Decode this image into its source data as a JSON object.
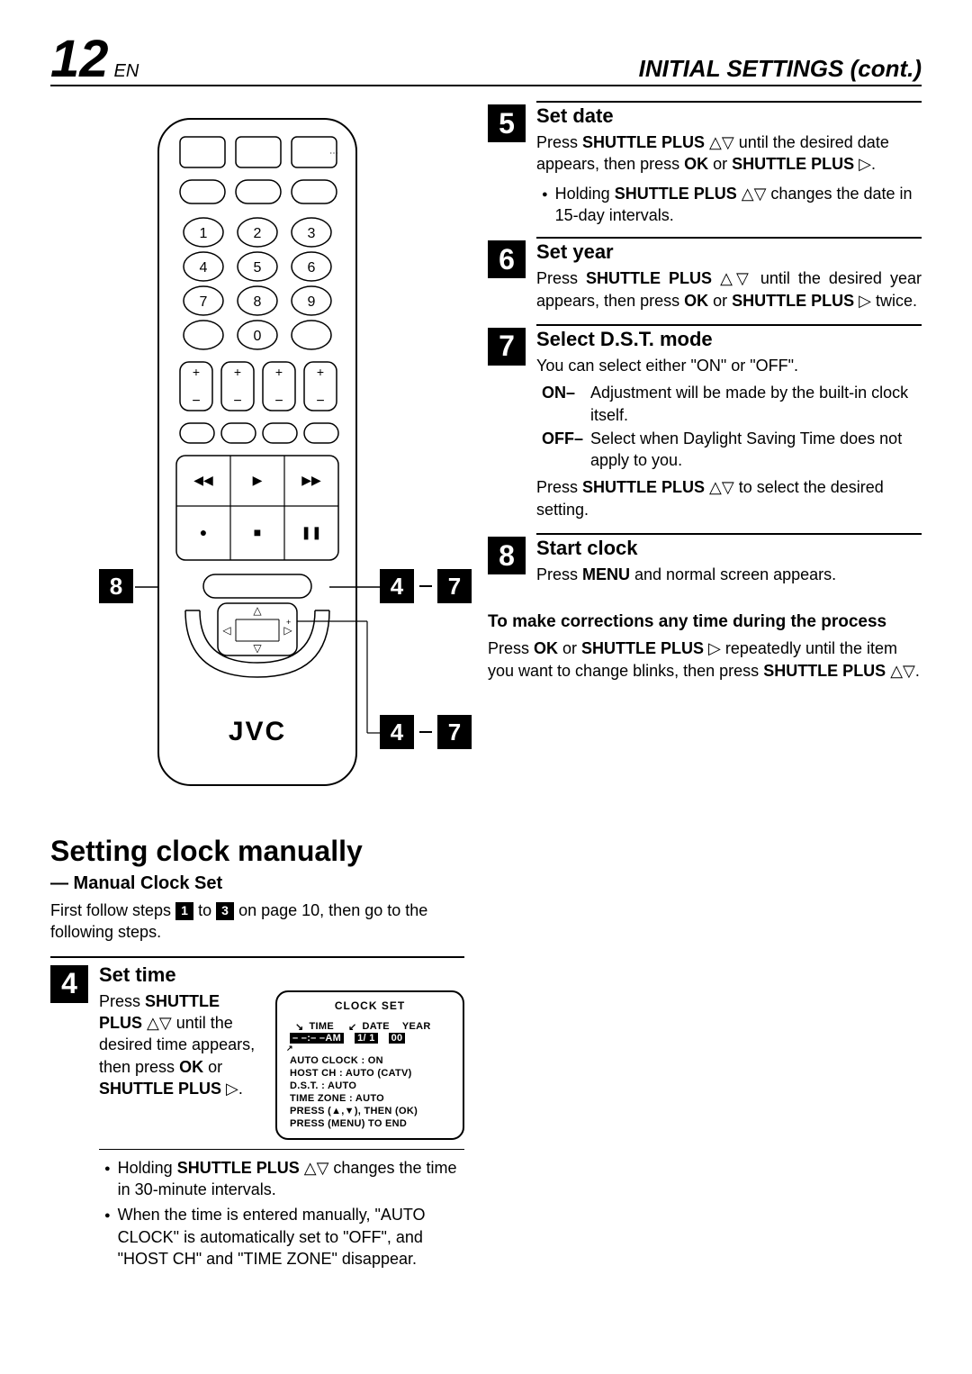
{
  "header": {
    "page_number": "12",
    "page_lang": "EN",
    "section": "INITIAL SETTINGS (cont.)"
  },
  "remote": {
    "brand": "JVC",
    "callouts": {
      "left_badge": "8",
      "right_top_a": "4",
      "right_top_b": "7",
      "right_bottom_a": "4",
      "right_bottom_b": "7"
    },
    "number_buttons": [
      "1",
      "2",
      "3",
      "4",
      "5",
      "6",
      "7",
      "8",
      "9",
      "0"
    ]
  },
  "steps_right": [
    {
      "num": "5",
      "title": "Set date",
      "body_html": "Press <b>SHUTTLE PLUS</b> △▽ until the desired date appears, then press <b>OK</b> or <b>SHUTTLE PLUS</b> ▷.",
      "bullets": [
        "Holding <b>SHUTTLE PLUS</b> △▽ changes the date in 15-day intervals."
      ]
    },
    {
      "num": "6",
      "title": "Set year",
      "body_html": "Press <b>SHUTTLE PLUS</b> △▽ until the desired year appears, then press <b>OK</b> or <b>SHUTTLE PLUS</b> ▷ twice."
    },
    {
      "num": "7",
      "title": "Select D.S.T. mode",
      "body_html": "You can select either \"ON\" or \"OFF\".",
      "defs": [
        {
          "key": "ON–",
          "text": "Adjustment will be made by the built-in clock itself."
        },
        {
          "key": "OFF–",
          "text": "Select when Daylight Saving Time does not apply to you."
        }
      ],
      "tail_html": "Press <b>SHUTTLE PLUS</b> △▽ to select the desired setting."
    },
    {
      "num": "8",
      "title": "Start clock",
      "body_html": "Press <b>MENU</b> and normal screen appears."
    }
  ],
  "corrections": {
    "heading": "To make corrections any time during the process",
    "body_html": "Press <b>OK</b> or <b>SHUTTLE PLUS</b> ▷ repeatedly until the item you want to change blinks, then press <b>SHUTTLE PLUS</b> △▽."
  },
  "bottom_section": {
    "heading": "Setting clock manually",
    "sub": "— Manual Clock Set",
    "intro_pre": "First follow steps ",
    "intro_step_a": "1",
    "intro_mid": " to ",
    "intro_step_b": "3",
    "intro_post": " on page 10, then go to the following steps.",
    "step4": {
      "num": "4",
      "title": "Set time",
      "body_html": "Press <b>SHUTTLE PLUS</b> △▽ until the desired time appears, then press <b>OK</b> or <b>SHUTTLE PLUS</b> ▷.",
      "bullets_after": [
        "Holding <b>SHUTTLE PLUS</b> △▽ changes the time in 30-minute intervals.",
        "When the time is entered manually, \"AUTO CLOCK\" is automatically set to \"OFF\", and \"HOST CH\" and \"TIME ZONE\" disappear."
      ],
      "osd": {
        "title": "CLOCK SET",
        "label_time": "TIME",
        "label_date": "DATE",
        "label_year": "YEAR",
        "val_time": "– –:– –AM",
        "val_date": "1/ 1",
        "val_year": "00",
        "line1": "AUTO CLOCK : ON",
        "line2": "HOST CH      : AUTO  (CATV)",
        "line3": "D.S.T.           : AUTO",
        "line4": "TIME ZONE   : AUTO",
        "line5": "PRESS (▲,▼), THEN (OK)",
        "line6": "PRESS (MENU) TO END"
      }
    }
  },
  "colors": {
    "text": "#000000",
    "bg": "#ffffff",
    "inverse_bg": "#000000",
    "inverse_text": "#ffffff"
  }
}
